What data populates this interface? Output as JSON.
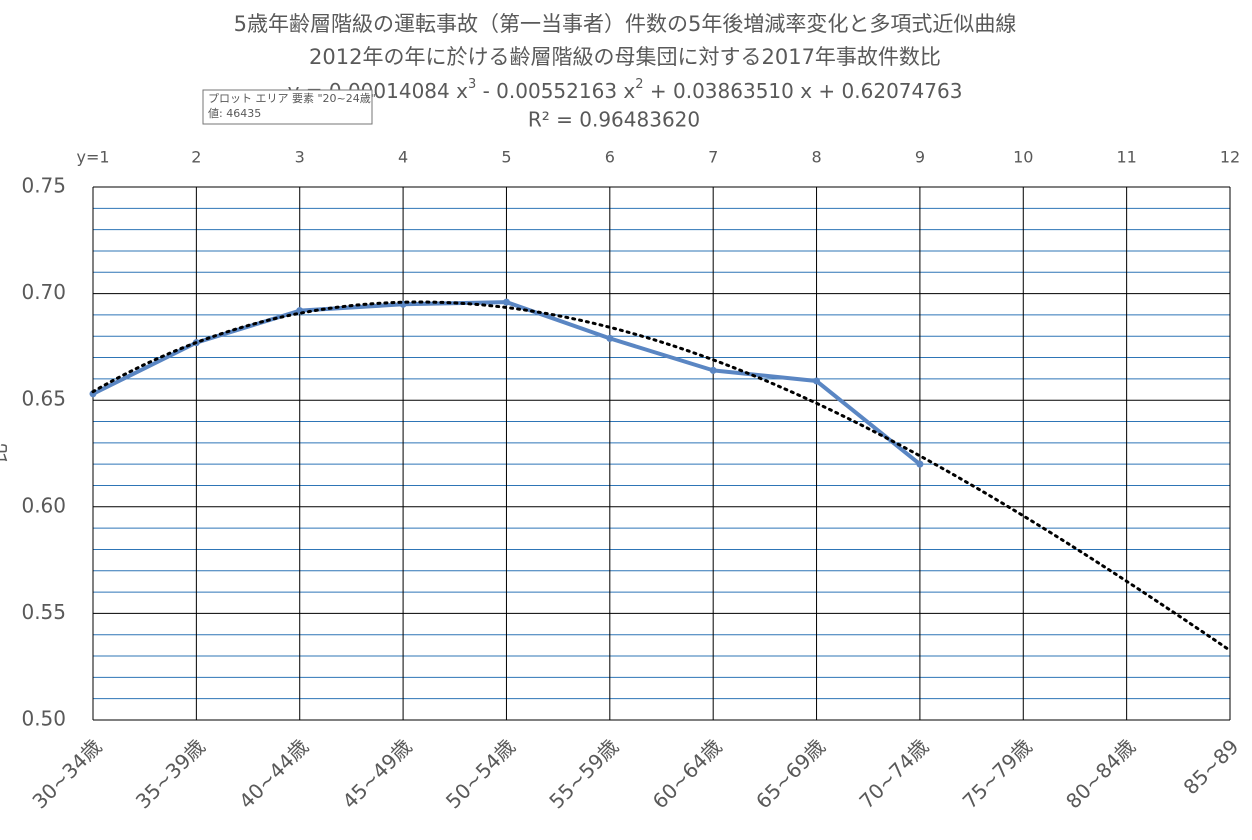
{
  "chart_data": {
    "type": "line",
    "title": "5歳年齢層階級の運転事故（第一当事者）件数の5年後増減率変化と多項式近似曲線",
    "subtitle": "2012年の年に於ける齢層階級の母集団に対する2017年事故件数比",
    "trendline_equation": [
      "y = 0.00014084 x",
      "3",
      " - 0.00552163 x",
      "2",
      " + 0.03863510 x + 0.62074763"
    ],
    "trendline_r2": "R² = 0.96483620",
    "trendline": {
      "coefficients": [
        0.62074763,
        0.0386351,
        -0.00552163,
        0.00014084
      ],
      "color": "#000000"
    },
    "y_label": "比",
    "categories": [
      "30~34歳",
      "35~39歳",
      "40~44歳",
      "45~49歳",
      "50~54歳",
      "55~59歳",
      "60~64歳",
      "65~69歳",
      "70~74歳",
      "75~79歳",
      "80~84歳",
      "85~89"
    ],
    "series": [
      {
        "name": "比",
        "color": "#5a86c3",
        "values": [
          0.653,
          0.677,
          0.692,
          0.695,
          0.696,
          0.679,
          0.664,
          0.659,
          0.62,
          null,
          null,
          null
        ]
      }
    ],
    "ylim": [
      0.5,
      0.75
    ],
    "yticks": [
      {
        "value": 0.5,
        "label": "0.50"
      },
      0.55,
      {
        "value": 0.6,
        "label": "0.60"
      },
      0.65,
      {
        "value": 0.7,
        "label": "0.70"
      },
      0.75
    ],
    "y_minor_ticks": [
      0.51,
      0.52,
      0.53,
      0.54,
      0.56,
      0.57,
      0.58,
      0.59,
      0.61,
      0.62,
      0.63,
      0.64,
      0.66,
      0.67,
      0.68,
      0.69,
      0.71,
      0.72,
      0.73,
      0.74
    ],
    "x2lim": [
      1,
      12
    ],
    "x2ticks": [
      {
        "value": 1,
        "label": "y=1"
      },
      2,
      3,
      4,
      5,
      6,
      7,
      8,
      9,
      10,
      11,
      12
    ],
    "grid": true,
    "tooltip": [
      "プロット エリア 要素 \"20~24歳\"",
      "値: 46435"
    ]
  }
}
